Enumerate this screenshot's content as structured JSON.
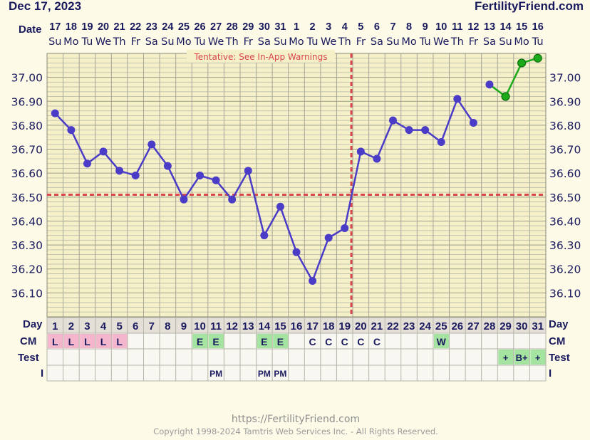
{
  "header": {
    "date": "Dec 17, 2023",
    "brand": "FertilityFriend.com"
  },
  "labels": {
    "date_row": "Date",
    "day_row": "Day",
    "cm_row": "CM",
    "test_row": "Test",
    "i_row": "I",
    "tentative": "Tentative: See In-App Warnings"
  },
  "footer": {
    "url": "https://FertilityFriend.com",
    "copyright": "Copyright 1998-2024 Tamtris Web Services Inc. - All Rights Reserved."
  },
  "colors": {
    "line": "#4b3cc8",
    "predicted": "#1aaa1a",
    "coverline": "#d9464b",
    "cm_pink": "#f4b6cc",
    "cm_green": "#a5e3a0"
  },
  "chart_data": {
    "type": "line",
    "ylim": [
      36.0,
      37.1
    ],
    "yticks": [
      "37.00",
      "36.90",
      "36.80",
      "36.70",
      "36.60",
      "36.50",
      "36.40",
      "36.30",
      "36.20",
      "36.10"
    ],
    "dates": [
      "17",
      "18",
      "19",
      "20",
      "21",
      "22",
      "23",
      "24",
      "25",
      "26",
      "27",
      "28",
      "29",
      "30",
      "31",
      "1",
      "2",
      "3",
      "4",
      "5",
      "6",
      "7",
      "8",
      "9",
      "10",
      "11",
      "12",
      "13",
      "14",
      "15",
      "16"
    ],
    "weekdays": [
      "Su",
      "Mo",
      "Tu",
      "We",
      "Th",
      "Fr",
      "Sa",
      "Su",
      "Mo",
      "Tu",
      "We",
      "Th",
      "Fr",
      "Sa",
      "Su",
      "Mo",
      "Tu",
      "We",
      "Th",
      "Fr",
      "Sa",
      "Su",
      "Mo",
      "Tu",
      "We",
      "Th",
      "Fr",
      "Sa",
      "Su",
      "Mo",
      "Tu"
    ],
    "cycle_days": [
      "1",
      "2",
      "3",
      "4",
      "5",
      "6",
      "7",
      "8",
      "9",
      "10",
      "11",
      "12",
      "13",
      "14",
      "15",
      "16",
      "17",
      "18",
      "19",
      "20",
      "21",
      "22",
      "23",
      "24",
      "25",
      "26",
      "27",
      "28",
      "29",
      "30",
      "31"
    ],
    "temps": [
      36.85,
      36.78,
      36.64,
      36.69,
      36.61,
      36.59,
      36.72,
      36.63,
      36.49,
      36.59,
      36.57,
      36.49,
      36.61,
      36.34,
      36.46,
      36.27,
      36.15,
      36.33,
      36.37,
      36.69,
      36.66,
      36.82,
      36.78,
      36.78,
      36.73,
      36.91,
      36.81,
      36.97,
      36.92,
      37.06,
      37.08
    ],
    "predicted_from_day": 28,
    "coverline_temp": 36.51,
    "ovulation_day": 19,
    "cm": [
      "L",
      "L",
      "L",
      "L",
      "L",
      "",
      "",
      "",
      "",
      "E",
      "E",
      "",
      "",
      "E",
      "E",
      "",
      "C",
      "C",
      "C",
      "C",
      "C",
      "",
      "",
      "",
      "W",
      "",
      "",
      "",
      "",
      "",
      ""
    ],
    "test": [
      "",
      "",
      "",
      "",
      "",
      "",
      "",
      "",
      "",
      "",
      "",
      "",
      "",
      "",
      "",
      "",
      "",
      "",
      "",
      "",
      "",
      "",
      "",
      "",
      "",
      "",
      "",
      "",
      "+",
      "B+",
      "+"
    ],
    "intercourse": [
      "",
      "",
      "",
      "",
      "",
      "",
      "",
      "",
      "",
      "",
      "PM",
      "",
      "",
      "PM",
      "PM",
      "",
      "",
      "",
      "",
      "",
      "",
      "",
      "",
      "",
      "",
      "",
      "",
      "",
      "",
      "",
      ""
    ]
  }
}
